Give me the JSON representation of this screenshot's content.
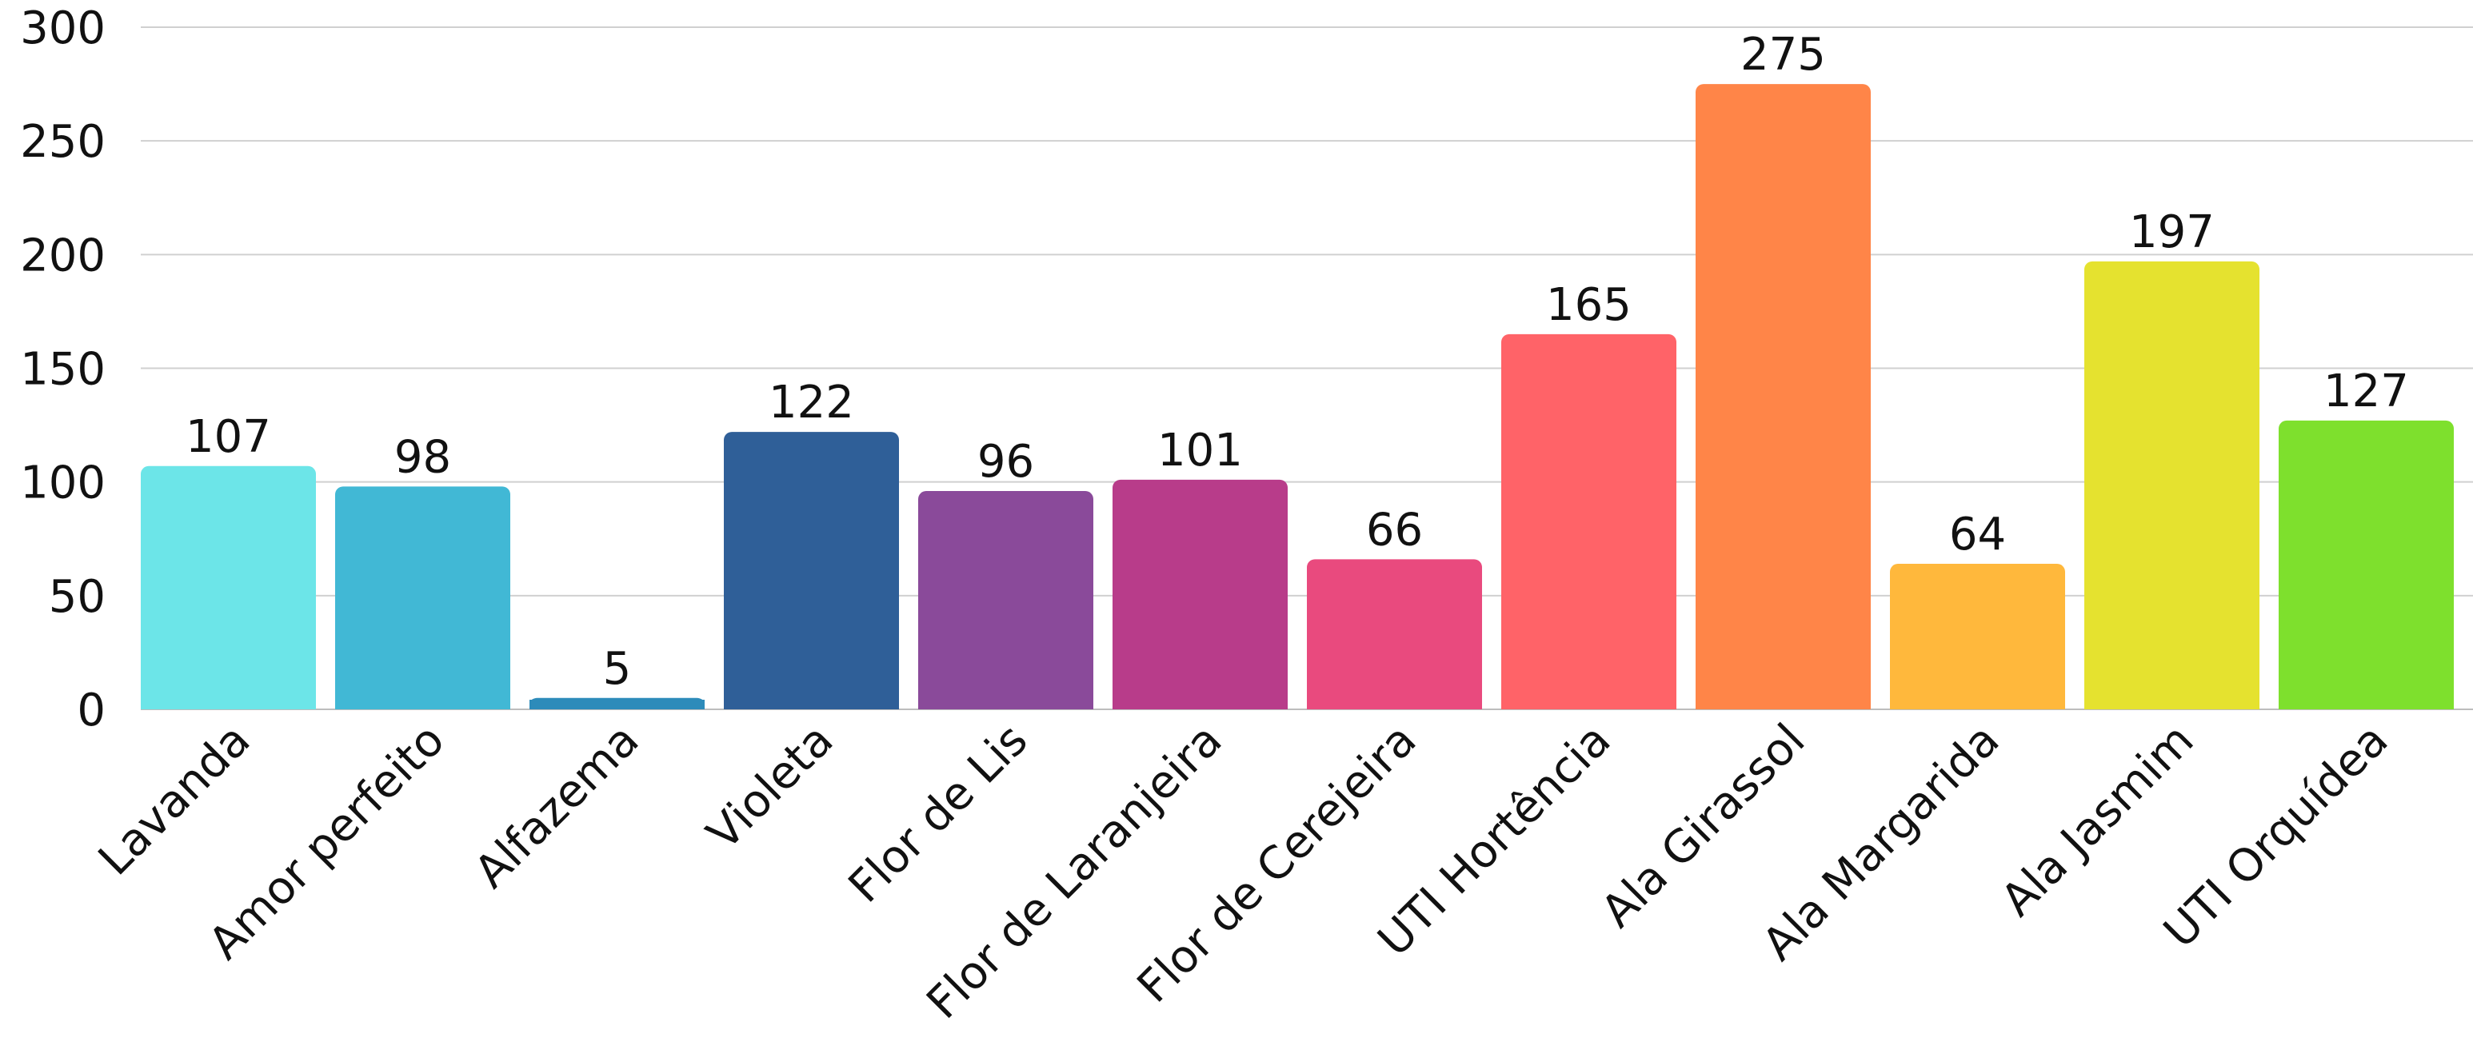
{
  "chart_data": {
    "type": "bar",
    "title": "",
    "xlabel": "",
    "ylabel": "",
    "ylim": [
      0,
      300
    ],
    "yticks": [
      0,
      50,
      100,
      150,
      200,
      250,
      300
    ],
    "grid": true,
    "legend": "none",
    "categories": [
      "Lavanda",
      "Amor perfeito",
      "Alfazema",
      "Violeta",
      "Flor de Lis",
      "Flor de Laranjeira",
      "Flor de Cerejeira",
      "UTI Hortência",
      "Ala Girassol",
      "Ala Margarida",
      "Ala Jasmim",
      "UTI Orquídea"
    ],
    "values": [
      107,
      98,
      5,
      122,
      96,
      101,
      66,
      165,
      275,
      64,
      197,
      127
    ],
    "colors": [
      "#6ce5e8",
      "#41b8d5",
      "#2d8bba",
      "#2f5f98",
      "#8a4a9a",
      "#b83c8a",
      "#e94a7e",
      "#ff6368",
      "#ff8548",
      "#ffb83c",
      "#e5e22f",
      "#7ee02d"
    ]
  }
}
